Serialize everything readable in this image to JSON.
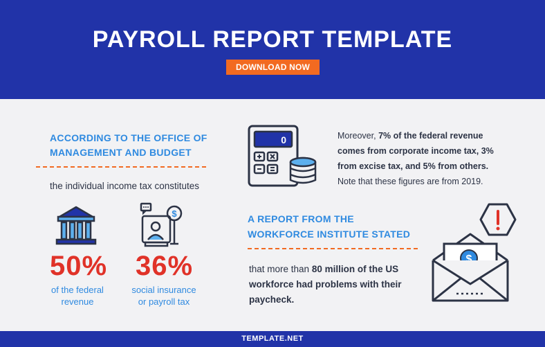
{
  "header": {
    "title": "PAYROLL REPORT TEMPLATE",
    "download_label": "DOWNLOAD NOW"
  },
  "left": {
    "heading_line1": "ACCORDING TO THE OFFICE OF",
    "heading_line2": "MANAGEMENT AND BUDGET",
    "intro": "the individual income tax constitutes",
    "stat1": {
      "value": "50%",
      "caption_line1": "of the federal",
      "caption_line2": "revenue",
      "icon": "government-building-icon"
    },
    "stat2": {
      "value": "36%",
      "caption_line1": "social insurance",
      "caption_line2": "or payroll tax",
      "icon": "finance-worker-icon"
    }
  },
  "right": {
    "para1": {
      "line1_pre": "Moreover, ",
      "line1_bold": "7% of the federal revenue",
      "line2": "comes from corporate income tax, 3%",
      "line3": "from excise tax, and 5% from others.",
      "line4": "Note that these figures are from 2019."
    },
    "heading_line1": "A REPORT FROM THE",
    "heading_line2": "WORKFORCE INSTITUTE STATED",
    "para2": {
      "line1_pre": "that more than ",
      "line1_bold": "80 million of the US",
      "line2": "workforce had problems with their",
      "line3": "paycheck."
    },
    "calc_icon": "calculator-coins-icon",
    "warning_icon": "warning-icon",
    "envelope_icon": "envelope-money-icon"
  },
  "footer": {
    "brand": "TEMPLATE.NET"
  },
  "colors": {
    "header_bg": "#2133a8",
    "accent_orange": "#f26a21",
    "heading_blue": "#2f8ae0",
    "stat_red": "#e03228",
    "background": "#f2f2f4"
  }
}
